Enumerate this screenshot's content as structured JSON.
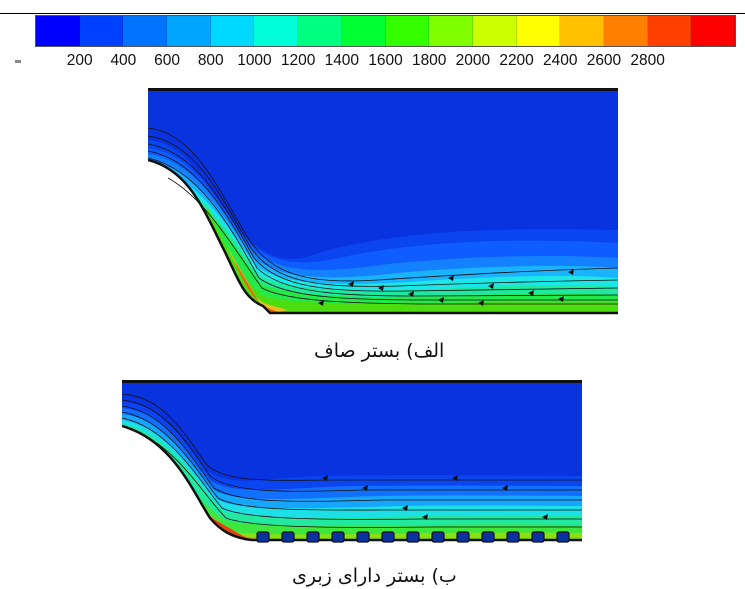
{
  "legend": {
    "ticks": [
      "200",
      "400",
      "600",
      "800",
      "1000",
      "1200",
      "1400",
      "1600",
      "1800",
      "2000",
      "2200",
      "2400",
      "2600",
      "2800"
    ],
    "colors": [
      "#0000ff",
      "#0040ff",
      "#0073ff",
      "#00a6ff",
      "#00d9ff",
      "#00ffd9",
      "#00ff80",
      "#00ff33",
      "#33ff00",
      "#80ff00",
      "#ccff00",
      "#ffff00",
      "#ffc000",
      "#ff8000",
      "#ff4000",
      "#ff0000"
    ]
  },
  "captions": {
    "panel_a": "الف) بستر صاف",
    "panel_b": "ب) بستر دارای زبری"
  }
}
